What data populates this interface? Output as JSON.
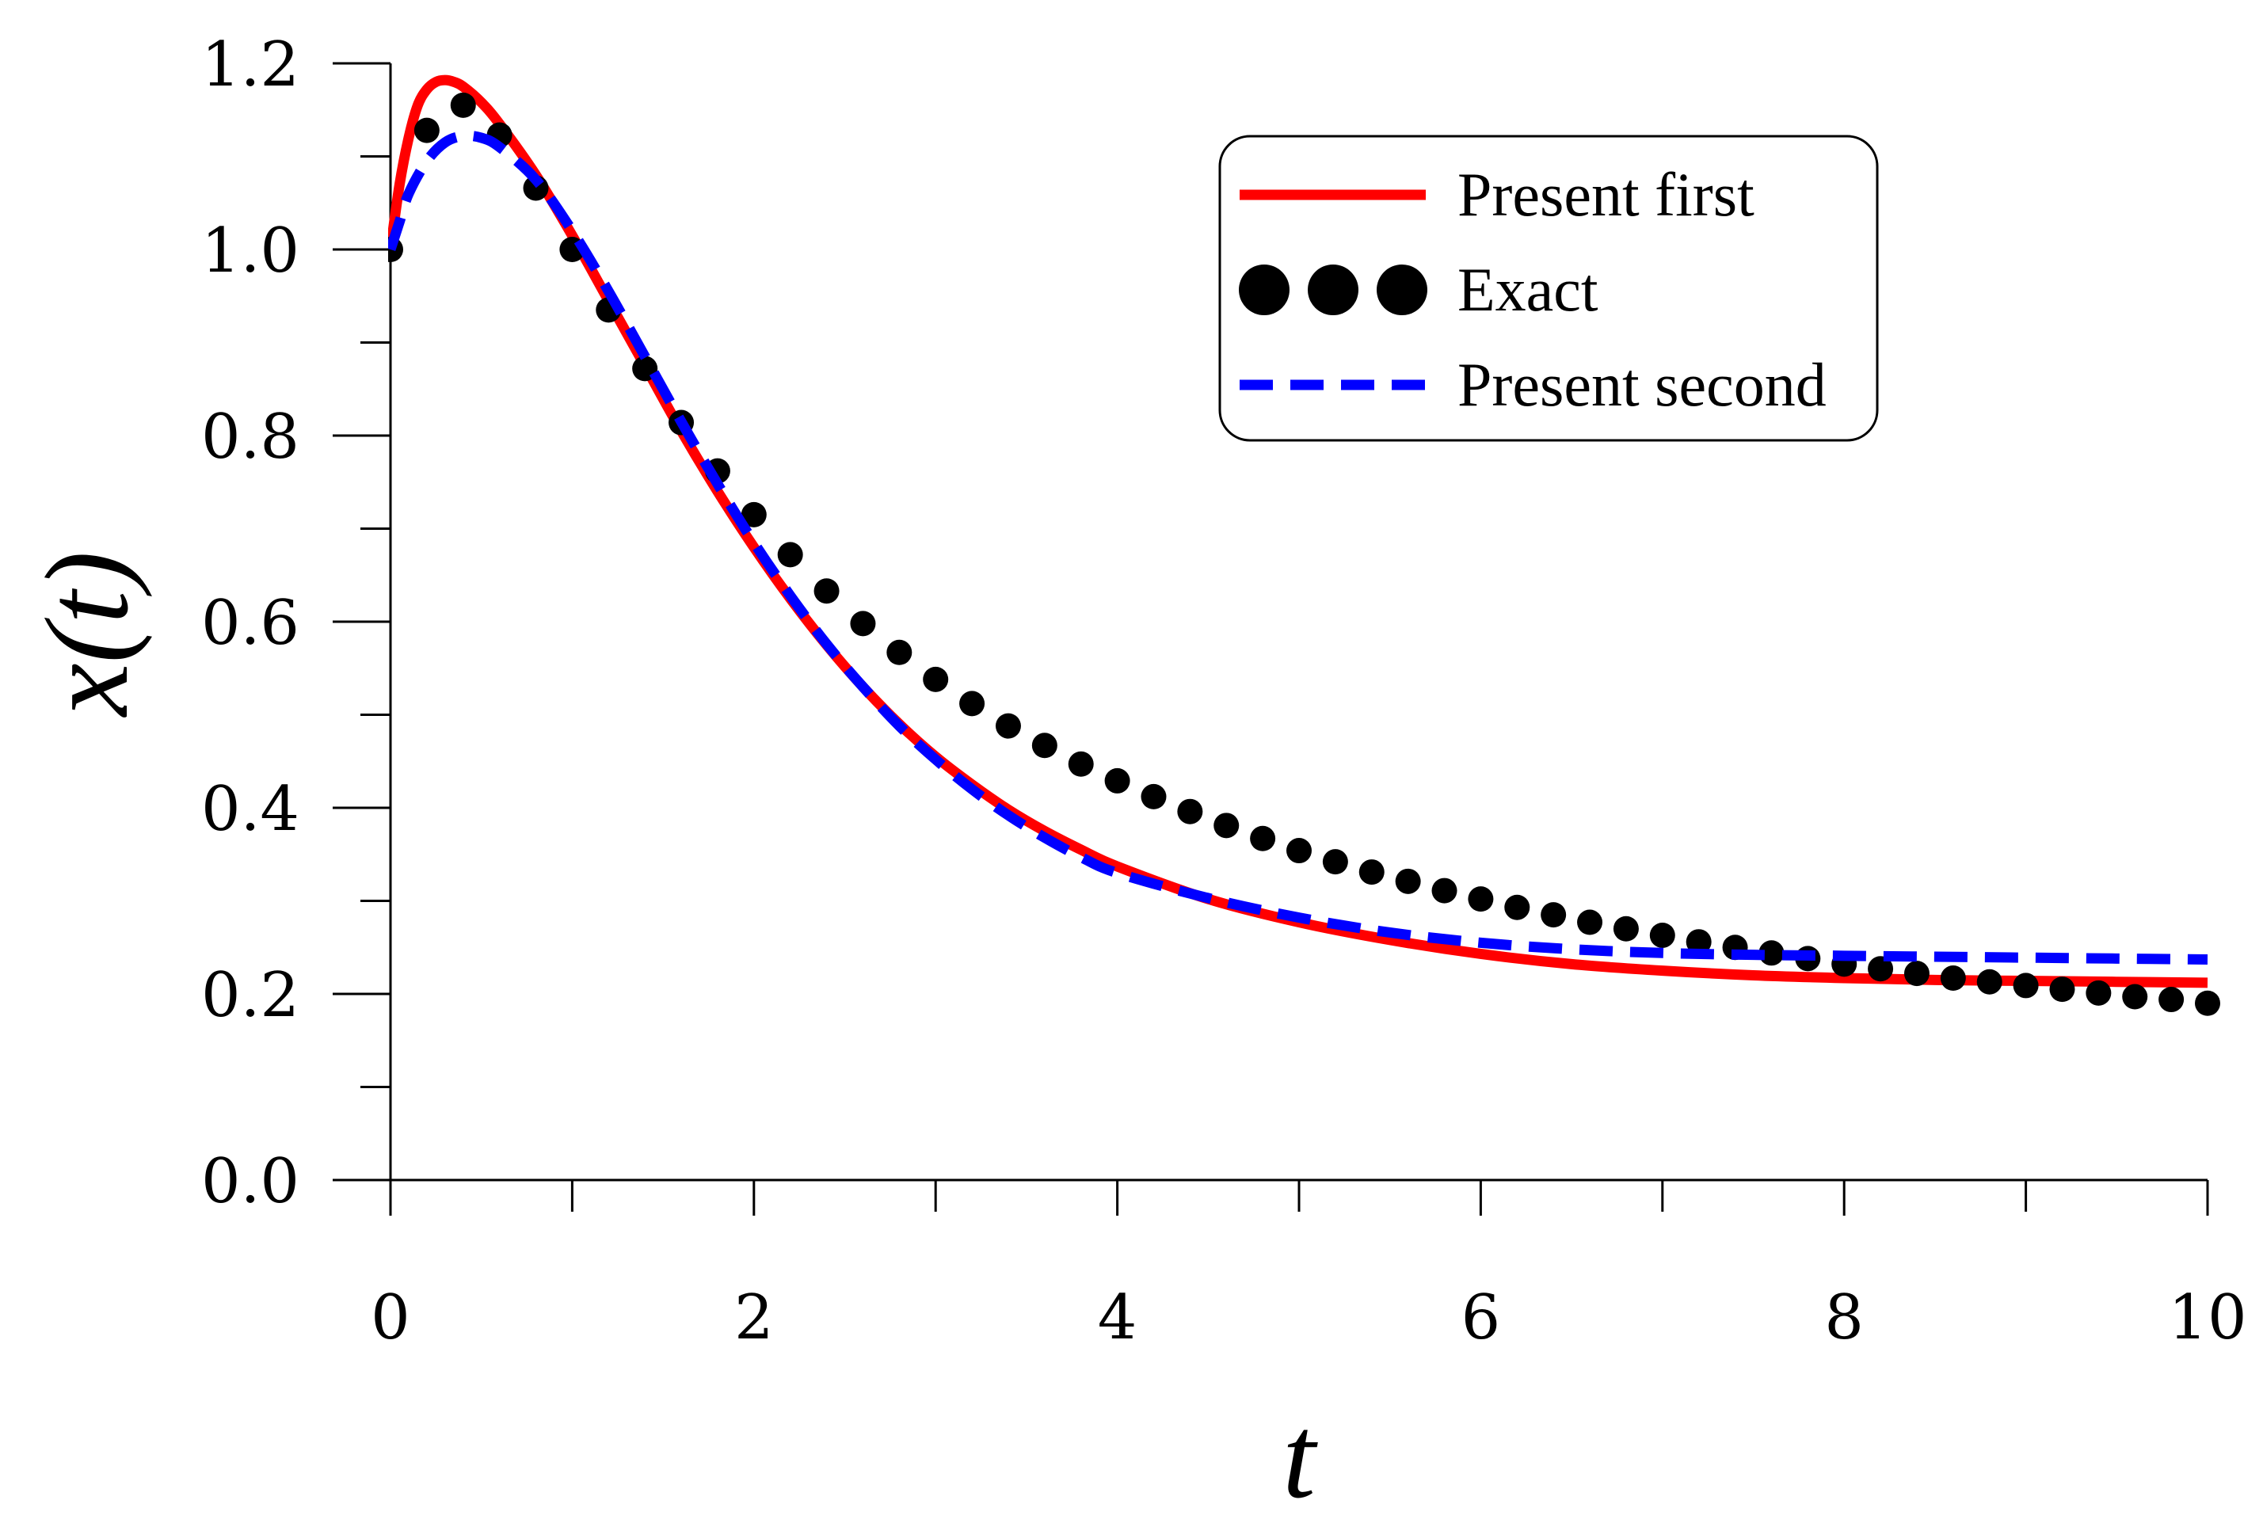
{
  "chart_data": {
    "type": "line",
    "title": "",
    "xlabel": "t",
    "ylabel_base": "x(",
    "ylabel_var": "t",
    "ylabel_close": ")",
    "xlim": [
      0,
      10
    ],
    "ylim": [
      0,
      1.2
    ],
    "x_ticks": [
      {
        "value": 0,
        "label": "0"
      },
      {
        "value": 2,
        "label": "2"
      },
      {
        "value": 4,
        "label": "4"
      },
      {
        "value": 6,
        "label": "6"
      },
      {
        "value": 8,
        "label": "8"
      },
      {
        "value": 10,
        "label": "10"
      }
    ],
    "x_minor_ticks": [
      1,
      3,
      5,
      7,
      9
    ],
    "y_ticks": [
      {
        "value": 0.0,
        "label": "0.0"
      },
      {
        "value": 0.2,
        "label": "0.2"
      },
      {
        "value": 0.4,
        "label": "0.4"
      },
      {
        "value": 0.6,
        "label": "0.6"
      },
      {
        "value": 0.8,
        "label": "0.8"
      },
      {
        "value": 1.0,
        "label": "1.0"
      },
      {
        "value": 1.2,
        "label": "1.2"
      }
    ],
    "y_minor_ticks": [
      0.1,
      0.3,
      0.5,
      0.7,
      0.9,
      1.1
    ],
    "legend_position": "top-right",
    "series": [
      {
        "name": "Present first",
        "style": "solid-line",
        "color": "#ff0000",
        "x": [
          0,
          0.05,
          0.1,
          0.15,
          0.2,
          0.25,
          0.3,
          0.35,
          0.4,
          0.5,
          0.6,
          0.8,
          1.0,
          1.2,
          1.4,
          1.6,
          1.8,
          2.0,
          2.2,
          2.4,
          2.6,
          2.8,
          3.0,
          3.2,
          3.4,
          3.6,
          3.8,
          4.0,
          4.5,
          5.0,
          5.5,
          6.0,
          6.5,
          7.0,
          7.5,
          8.0,
          8.5,
          9.0,
          9.5,
          10.0
        ],
        "y": [
          1.0,
          1.07,
          1.12,
          1.155,
          1.172,
          1.18,
          1.182,
          1.18,
          1.175,
          1.158,
          1.135,
          1.08,
          1.015,
          0.945,
          0.875,
          0.805,
          0.74,
          0.68,
          0.625,
          0.575,
          0.53,
          0.49,
          0.455,
          0.425,
          0.398,
          0.375,
          0.355,
          0.337,
          0.302,
          0.277,
          0.258,
          0.243,
          0.232,
          0.225,
          0.22,
          0.217,
          0.215,
          0.214,
          0.213,
          0.212
        ]
      },
      {
        "name": "Exact",
        "style": "markers",
        "color": "#000000",
        "x": [
          0,
          0.2,
          0.4,
          0.6,
          0.8,
          1.0,
          1.2,
          1.4,
          1.6,
          1.8,
          2.0,
          2.2,
          2.4,
          2.6,
          2.8,
          3.0,
          3.2,
          3.4,
          3.6,
          3.8,
          4.0,
          4.2,
          4.4,
          4.6,
          4.8,
          5.0,
          5.2,
          5.4,
          5.6,
          5.8,
          6.0,
          6.2,
          6.4,
          6.6,
          6.8,
          7.0,
          7.2,
          7.4,
          7.6,
          7.8,
          8.0,
          8.2,
          8.4,
          8.6,
          8.8,
          9.0,
          9.2,
          9.4,
          9.6,
          9.8,
          10.0
        ],
        "y": [
          1.0,
          1.128,
          1.155,
          1.123,
          1.066,
          1.0,
          0.935,
          0.872,
          0.814,
          0.762,
          0.715,
          0.672,
          0.633,
          0.598,
          0.567,
          0.538,
          0.512,
          0.488,
          0.467,
          0.447,
          0.429,
          0.412,
          0.396,
          0.381,
          0.367,
          0.354,
          0.342,
          0.331,
          0.321,
          0.311,
          0.302,
          0.293,
          0.285,
          0.277,
          0.27,
          0.263,
          0.256,
          0.25,
          0.244,
          0.238,
          0.232,
          0.227,
          0.222,
          0.217,
          0.213,
          0.209,
          0.205,
          0.201,
          0.197,
          0.194,
          0.19
        ]
      },
      {
        "name": "Present second",
        "style": "dashed-line",
        "color": "#0000ff",
        "x": [
          0,
          0.05,
          0.1,
          0.2,
          0.3,
          0.4,
          0.5,
          0.6,
          0.8,
          1.0,
          1.2,
          1.4,
          1.6,
          1.8,
          2.0,
          2.2,
          2.4,
          2.6,
          2.8,
          3.0,
          3.2,
          3.4,
          3.6,
          3.8,
          4.0,
          4.5,
          5.0,
          5.5,
          6.0,
          6.5,
          7.0,
          7.5,
          8.0,
          8.5,
          9.0,
          9.5,
          10.0
        ],
        "y": [
          1.0,
          1.03,
          1.06,
          1.095,
          1.115,
          1.122,
          1.12,
          1.11,
          1.075,
          1.02,
          0.955,
          0.885,
          0.815,
          0.748,
          0.685,
          0.628,
          0.576,
          0.53,
          0.488,
          0.452,
          0.42,
          0.392,
          0.368,
          0.347,
          0.33,
          0.303,
          0.282,
          0.266,
          0.255,
          0.248,
          0.244,
          0.242,
          0.241,
          0.24,
          0.239,
          0.238,
          0.237
        ]
      }
    ]
  }
}
